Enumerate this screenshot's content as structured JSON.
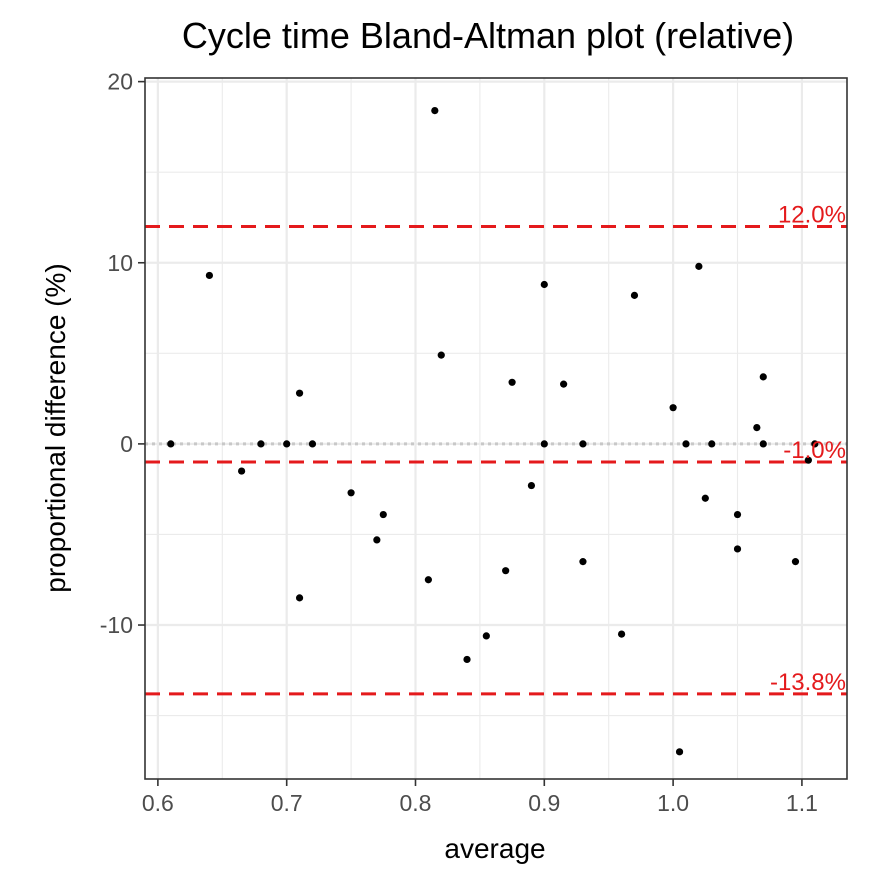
{
  "chart_data": {
    "type": "scatter",
    "title": "Cycle time   Bland-Altman plot (relative)",
    "xlabel": "average",
    "ylabel": "proportional difference (%)",
    "xlim": [
      0.59,
      1.135
    ],
    "ylim": [
      -18.5,
      20.2
    ],
    "x_ticks": [
      0.6,
      0.7,
      0.8,
      0.9,
      1.0,
      1.1
    ],
    "x_tick_labels": [
      "0.6",
      "0.7",
      "0.8",
      "0.9",
      "1.0",
      "1.1"
    ],
    "y_ticks": [
      -10,
      0,
      10,
      20
    ],
    "y_tick_labels": [
      "-10",
      "0",
      "10",
      "20"
    ],
    "grid": true,
    "zero_line": 0,
    "reference_lines": [
      {
        "value": 12.0,
        "label": "12.0%",
        "color": "#e41a1c"
      },
      {
        "value": -1.0,
        "label": "-1.0%",
        "color": "#e41a1c"
      },
      {
        "value": -13.8,
        "label": "-13.8%",
        "color": "#e41a1c"
      }
    ],
    "points": [
      {
        "x": 0.61,
        "y": 0.0
      },
      {
        "x": 0.64,
        "y": 9.3
      },
      {
        "x": 0.665,
        "y": -1.5
      },
      {
        "x": 0.68,
        "y": 0.0
      },
      {
        "x": 0.7,
        "y": 0.0
      },
      {
        "x": 0.71,
        "y": 2.8
      },
      {
        "x": 0.71,
        "y": -8.5
      },
      {
        "x": 0.72,
        "y": 0.0
      },
      {
        "x": 0.75,
        "y": -2.7
      },
      {
        "x": 0.77,
        "y": -5.3
      },
      {
        "x": 0.775,
        "y": -3.9
      },
      {
        "x": 0.81,
        "y": -7.5
      },
      {
        "x": 0.815,
        "y": 18.4
      },
      {
        "x": 0.82,
        "y": 4.9
      },
      {
        "x": 0.84,
        "y": -11.9
      },
      {
        "x": 0.855,
        "y": -10.6
      },
      {
        "x": 0.87,
        "y": -7.0
      },
      {
        "x": 0.875,
        "y": 3.4
      },
      {
        "x": 0.89,
        "y": -2.3
      },
      {
        "x": 0.9,
        "y": 8.8
      },
      {
        "x": 0.9,
        "y": 0.0
      },
      {
        "x": 0.915,
        "y": 3.3
      },
      {
        "x": 0.93,
        "y": 0.0
      },
      {
        "x": 0.93,
        "y": -6.5
      },
      {
        "x": 0.96,
        "y": -10.5
      },
      {
        "x": 0.97,
        "y": 8.2
      },
      {
        "x": 1.0,
        "y": 2.0
      },
      {
        "x": 1.005,
        "y": -17.0
      },
      {
        "x": 1.01,
        "y": 0.0
      },
      {
        "x": 1.02,
        "y": 9.8
      },
      {
        "x": 1.025,
        "y": -3.0
      },
      {
        "x": 1.03,
        "y": 0.0
      },
      {
        "x": 1.05,
        "y": -3.9
      },
      {
        "x": 1.05,
        "y": -5.8
      },
      {
        "x": 1.065,
        "y": 0.9
      },
      {
        "x": 1.07,
        "y": 3.7
      },
      {
        "x": 1.07,
        "y": 0.0
      },
      {
        "x": 1.095,
        "y": -6.5
      },
      {
        "x": 1.105,
        "y": -0.9
      },
      {
        "x": 1.11,
        "y": 0.0
      }
    ]
  }
}
